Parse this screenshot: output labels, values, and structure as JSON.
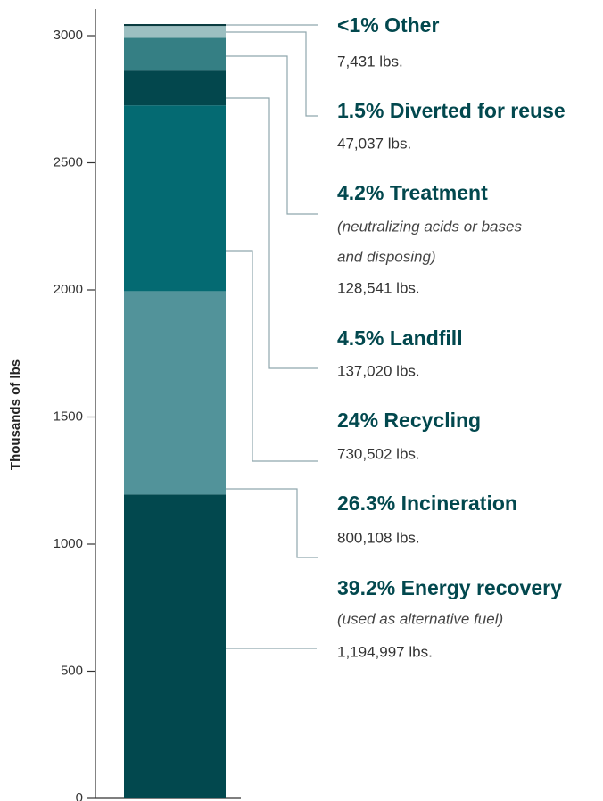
{
  "chart_data": {
    "type": "stacked_bar",
    "y_label": "Thousands of lbs",
    "ylim": [
      0,
      3050
    ],
    "yticks": [
      0,
      500,
      1000,
      1500,
      2000,
      2500,
      3000
    ],
    "series": [
      {
        "name": "39.2% Energy recovery",
        "note": [
          "(used as alternative fuel)"
        ],
        "color": "#02484e",
        "values": [
          1194.997
        ],
        "value_labels": [
          "1,194,997 lbs."
        ]
      },
      {
        "name": "26.3% Incineration",
        "color": "#52939a",
        "values": [
          800.108
        ],
        "value_labels": [
          "800,108 lbs."
        ]
      },
      {
        "name": "24% Recycling",
        "color": "#046a72",
        "values": [
          730.502
        ],
        "value_labels": [
          "730,502 lbs."
        ]
      },
      {
        "name": "4.5% Landfill",
        "color": "#03474d",
        "values": [
          137.02
        ],
        "value_labels": [
          "137,020 lbs."
        ]
      },
      {
        "name": "4.2% Treatment",
        "note": [
          "(neutralizing acids or bases",
          "and disposing)"
        ],
        "color": "#357f84",
        "values": [
          128.541
        ],
        "value_labels": [
          "128,541 lbs."
        ]
      },
      {
        "name": "1.5% Diverted for reuse",
        "color": "#9cbfc1",
        "values": [
          47.037
        ],
        "value_labels": [
          "47,037 lbs."
        ]
      },
      {
        "name": "<1% Other",
        "color": "#0a3c40",
        "values": [
          7.431
        ],
        "value_labels": [
          "7,431 lbs."
        ]
      }
    ]
  }
}
